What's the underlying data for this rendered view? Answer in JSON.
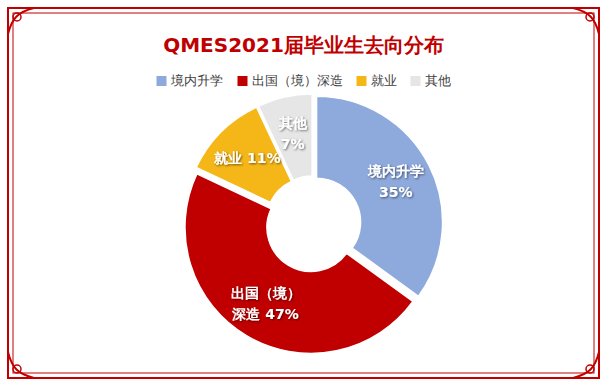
{
  "chart_data": {
    "type": "donut",
    "title": "QMES2021届毕业生去向分布",
    "categories": [
      "境内升学",
      "出国（境）深造",
      "就业",
      "其他"
    ],
    "values": [
      35,
      47,
      11,
      7
    ],
    "value_labels": [
      "35%",
      "47%",
      "11%",
      "7%"
    ],
    "colors": [
      "#8eaadc",
      "#c00000",
      "#f5b718",
      "#e7e6e6"
    ],
    "legend": "top",
    "data_labels": true
  }
}
